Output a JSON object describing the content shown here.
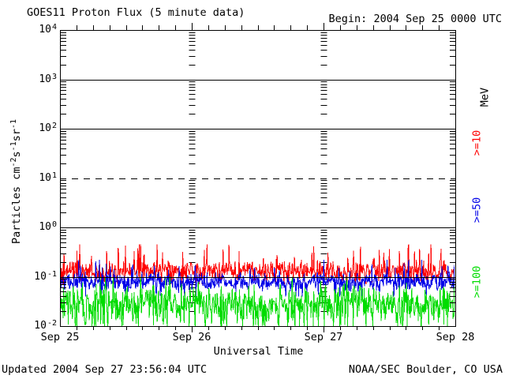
{
  "header": {
    "title": "GOES11 Proton Flux (5 minute data)",
    "begin_label": "Begin: 2004 Sep 25 0000 UTC"
  },
  "footer": {
    "updated": "Updated 2004 Sep 27 23:56:04 UTC",
    "credit": "NOAA/SEC Boulder, CO USA"
  },
  "colors": {
    "background": "#ffffff",
    "axis": "#000000",
    "red_series": "#ff0000",
    "blue_series": "#0000e8",
    "green_series": "#00dc00"
  },
  "chart_data": {
    "type": "line",
    "title": "GOES11 Proton Flux (5 minute data)",
    "begin": "2004 Sep 25 0000 UTC",
    "xlabel": "Universal Time",
    "ylabel": "Particles cm-2s-1sr-1",
    "ylabel_segments": [
      {
        "text": "Particles cm"
      },
      {
        "text": "-2",
        "sup": true
      },
      {
        "text": "s"
      },
      {
        "text": "-1",
        "sup": true
      },
      {
        "text": "sr"
      },
      {
        "text": "-1",
        "sup": true
      }
    ],
    "x_tick_labels": [
      "Sep 25",
      "Sep 26",
      "Sep 27",
      "Sep 28"
    ],
    "y_tick_exponents": [
      4,
      3,
      2,
      1,
      0,
      -1,
      -2
    ],
    "y_range": [
      0.01,
      10000
    ],
    "log_scale": true,
    "duration_hours": 72,
    "minor_tick_hours": 3,
    "sample_interval_minutes": 5,
    "right_axis_unit": "MeV",
    "grid": {
      "solid_gridline_exps": [
        3,
        2,
        0,
        -1
      ],
      "dashed_gridline_exps": [
        1
      ],
      "interior_day_boundaries": [
        1,
        2
      ]
    },
    "series": [
      {
        "label": ">=10",
        "energy": ">=10 MeV",
        "color": "#ff0000",
        "typical_flux": 0.13,
        "min_flux": 0.07,
        "max_flux": 0.45
      },
      {
        "label": ">=50",
        "energy": ">=50 MeV",
        "color": "#0000e8",
        "typical_flux": 0.08,
        "min_flux": 0.04,
        "max_flux": 0.22
      },
      {
        "label": ">=100",
        "energy": ">=100 MeV",
        "color": "#00dc00",
        "typical_flux": 0.032,
        "min_flux": 0.01,
        "max_flux": 0.1
      }
    ]
  }
}
